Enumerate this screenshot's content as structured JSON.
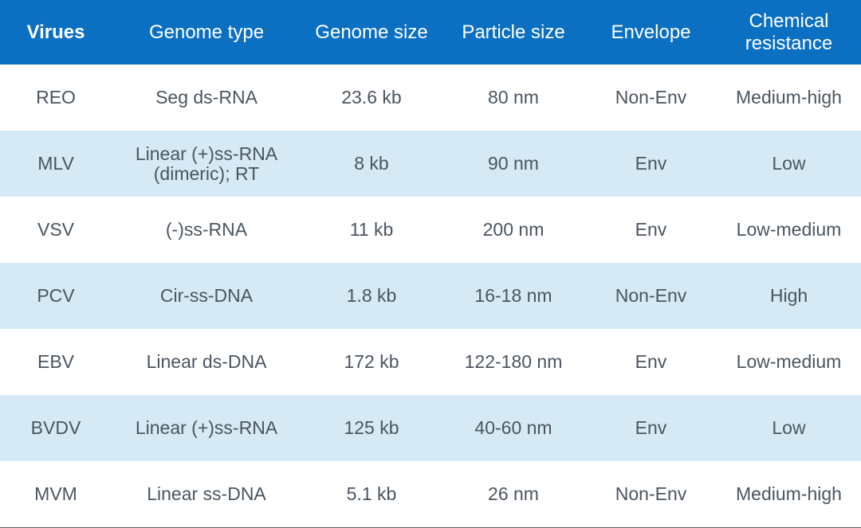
{
  "colors": {
    "header_bg": "#0b6fc2",
    "header_text": "#ffffff",
    "stripe_bg": "#d6eaf6",
    "body_text": "#4a5560",
    "bottom_rule": "#5b6168"
  },
  "table": {
    "headers": [
      "Virues",
      "Genome type",
      "Genome size",
      "Particle size",
      "Envelope",
      "Chemical\nresistance"
    ],
    "rows": [
      [
        "REO",
        "Seg ds-RNA",
        "23.6 kb",
        "80 nm",
        "Non-Env",
        "Medium-high"
      ],
      [
        "MLV",
        "Linear (+)ss-RNA\n(dimeric); RT",
        "8 kb",
        "90 nm",
        "Env",
        "Low"
      ],
      [
        "VSV",
        "(-)ss-RNA",
        "11 kb",
        "200 nm",
        "Env",
        "Low-medium"
      ],
      [
        "PCV",
        "Cir-ss-DNA",
        "1.8 kb",
        "16-18 nm",
        "Non-Env",
        "High"
      ],
      [
        "EBV",
        "Linear ds-DNA",
        "172 kb",
        "122-180 nm",
        "Env",
        "Low-medium"
      ],
      [
        "BVDV",
        "Linear (+)ss-RNA",
        "125 kb",
        "40-60 nm",
        "Env",
        "Low"
      ],
      [
        "MVM",
        "Linear ss-DNA",
        "5.1 kb",
        "26 nm",
        "Non-Env",
        "Medium-high"
      ]
    ]
  }
}
